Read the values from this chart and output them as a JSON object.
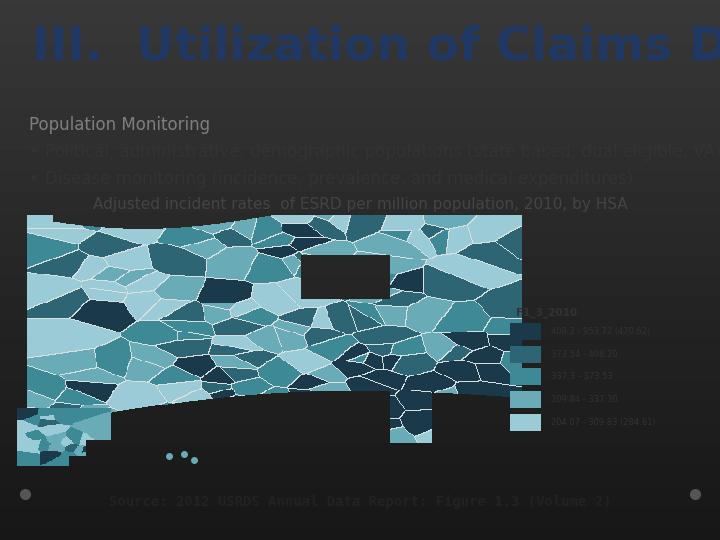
{
  "title": "III.  Utilization of Claims Data",
  "title_color": "#1F3864",
  "title_fontsize": 34,
  "subtitle": "Population Monitoring",
  "subtitle_color": "#7f7f7f",
  "subtitle_fontsize": 12,
  "bullet1": "Political, administrative, demographic populations (state based, dual eligible, VA)",
  "bullet2": "Disease monitoring (incidence, prevalence, and medical expenditures)",
  "bullet_fontsize": 12,
  "bullet_color": "#333333",
  "map_caption_normal": "Adjusted incident rates  of ESRD per million population, ",
  "map_caption_bold": "2010",
  "map_caption_normal2": ", by HSA",
  "map_caption_fontsize": 11,
  "map_caption_color": "#444444",
  "source_text": "Source: 2012 USRDS Annual Data Report: Figure 1.3 (Volume 2)",
  "source_fontsize": 10,
  "source_color": "#222222",
  "legend_title": "F1_3_2010",
  "legend_labels": [
    "408.2 - 953.72 (470.62)",
    "373.54 - 408.20",
    "337.3 - 373.53",
    "309.84 - 337.30",
    "204.07 - 309.83 (284.81)"
  ],
  "legend_colors": [
    "#1a3a4c",
    "#2d6575",
    "#3d8a96",
    "#6aabb8",
    "#9bcbd6"
  ],
  "bg_top": "#d8d8d8",
  "bg_bottom": "#e8e8e8",
  "slide_bg": "#e0e0e0",
  "map_colors": [
    "#1a3a4c",
    "#2d6575",
    "#3d8a96",
    "#6aabb8",
    "#9bcbd6"
  ],
  "water_color": "#dce8ec"
}
